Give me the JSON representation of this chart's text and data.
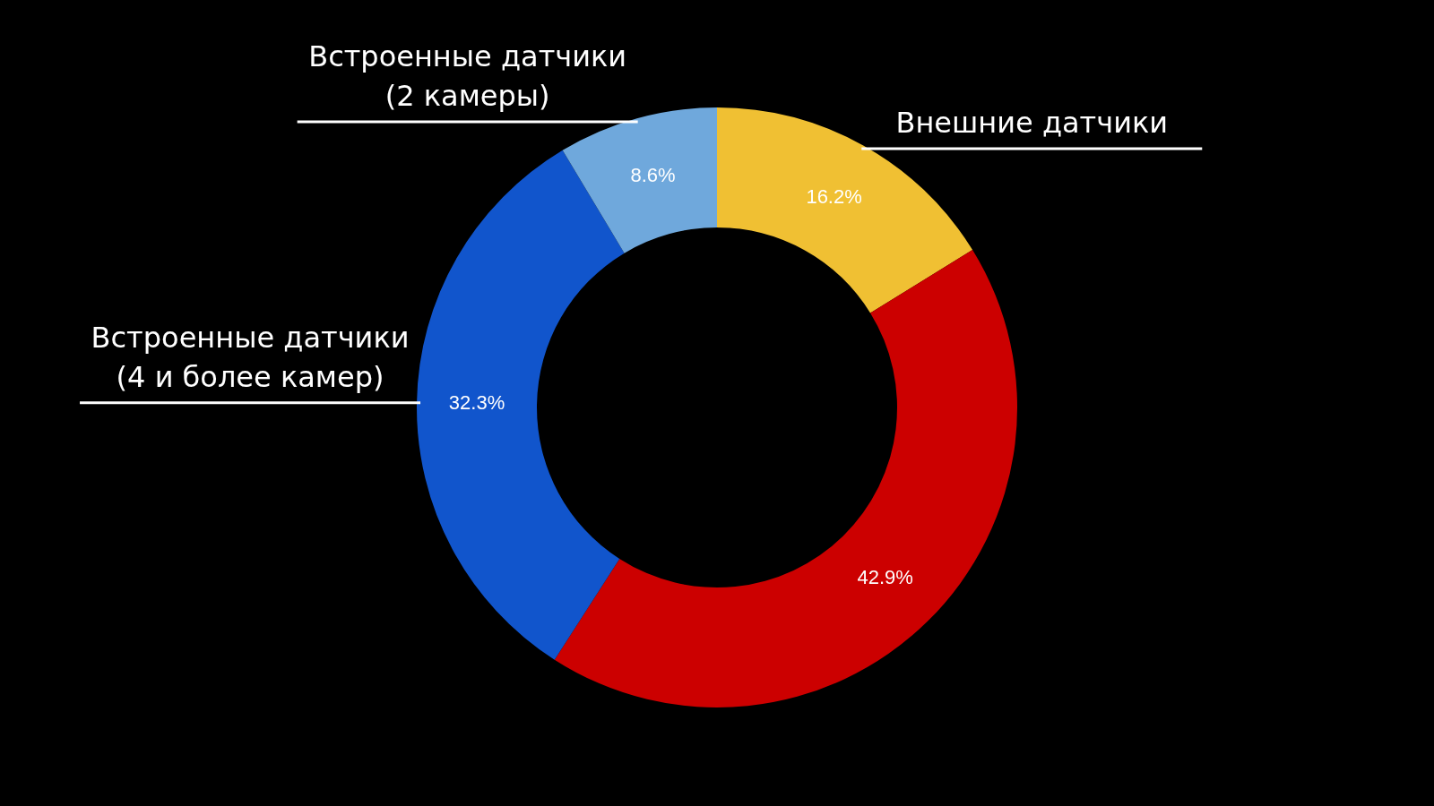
{
  "chart_data": {
    "type": "donut",
    "categories": [
      "Внешние датчики",
      null,
      "Встроенные датчики (4 и более камер)",
      "Встроенные датчики (2 камеры)"
    ],
    "values": [
      16.2,
      42.9,
      32.3,
      8.6
    ],
    "colors": [
      "#f0c033",
      "#cc0000",
      "#1155cc",
      "#6fa8dc"
    ],
    "value_labels": [
      "16.2%",
      "42.9%",
      "32.3%",
      "8.6%"
    ],
    "legend": false
  }
}
